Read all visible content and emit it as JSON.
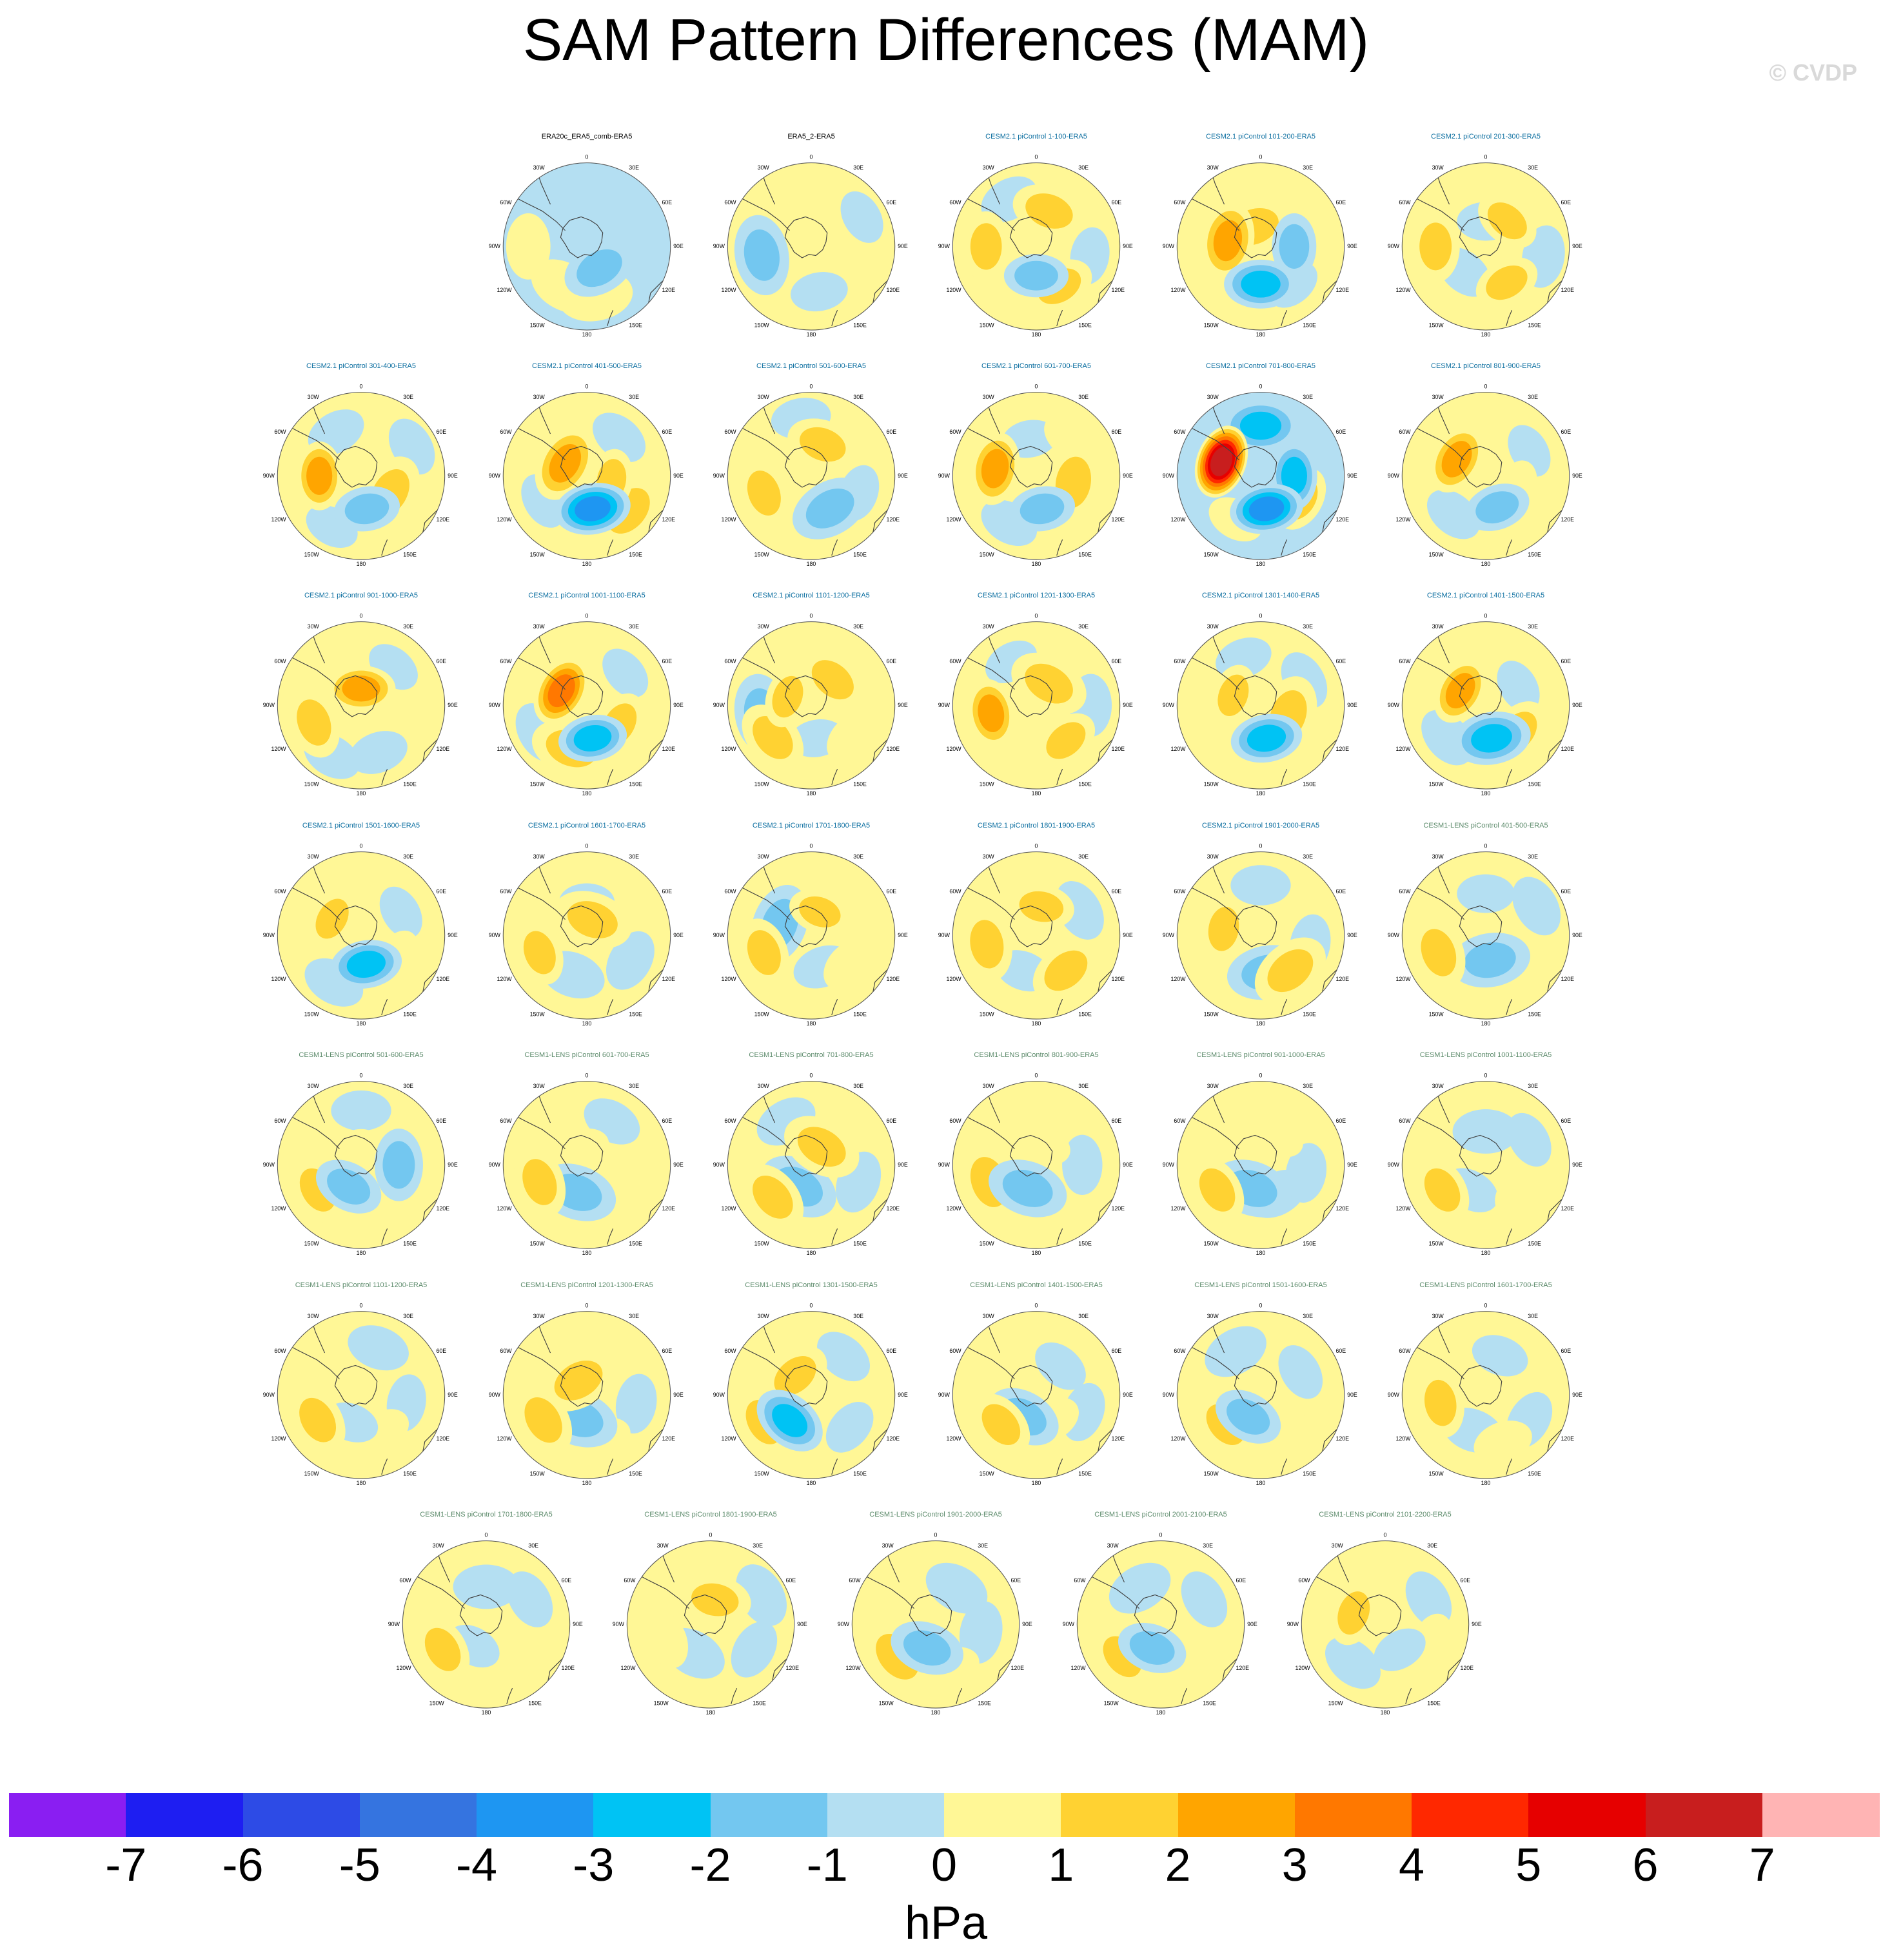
{
  "title": "SAM Pattern Differences (MAM)",
  "watermark": "© CVDP",
  "units": "hPa",
  "colorbar": {
    "colors": [
      "#8a1ef2",
      "#1e1ef2",
      "#2d4be6",
      "#3574e0",
      "#1e96f2",
      "#00c3f4",
      "#73c7f0",
      "#b4dff2",
      "#fff796",
      "#ffd232",
      "#ffa500",
      "#ff7800",
      "#ff2800",
      "#e60000",
      "#c81e1e",
      "#ffb4b4"
    ],
    "labels": [
      "-7",
      "-6",
      "-5",
      "-4",
      "-3",
      "-2",
      "-1",
      "0",
      "1",
      "2",
      "3",
      "4",
      "5",
      "6",
      "7"
    ]
  },
  "map_labels": {
    "top": "0",
    "bottom": "180",
    "ul": "30W",
    "ur": "30E",
    "l1": "60W",
    "r1": "60E",
    "l2": "90W",
    "r2": "90E",
    "l3": "120W",
    "r3": "120E",
    "bl": "150W",
    "br": "150E"
  },
  "panels": [
    {
      "label": "ERA20c_ERA5_comb-ERA5",
      "color": "#000000",
      "base": -0.5,
      "blobs": [
        [
          -90,
          70,
          0.6
        ],
        [
          -150,
          55,
          0.5
        ],
        [
          170,
          60,
          0.4
        ],
        [
          150,
          30,
          -1.4
        ]
      ]
    },
    {
      "label": "ERA5_2-ERA5",
      "color": "#000000",
      "base": 0.4,
      "blobs": [
        [
          -100,
          60,
          -1.2
        ],
        [
          60,
          70,
          -1.0
        ],
        [
          170,
          55,
          -0.9
        ],
        [
          -150,
          30,
          0.6
        ]
      ]
    },
    {
      "label": "CESM2.1 piControl 1-100-ERA5",
      "color": "#0b6ea0",
      "base": 0.5,
      "blobs": [
        [
          -90,
          60,
          1.6
        ],
        [
          150,
          55,
          1.6
        ],
        [
          180,
          35,
          -1.9
        ],
        [
          20,
          45,
          1.4
        ],
        [
          100,
          65,
          -0.9
        ],
        [
          -30,
          65,
          -0.8
        ]
      ]
    },
    {
      "label": "CESM2.1 piControl 101-200-ERA5",
      "color": "#0b6ea0",
      "base": 0.5,
      "blobs": [
        [
          -80,
          40,
          2.2
        ],
        [
          180,
          45,
          -2.5
        ],
        [
          90,
          40,
          -1.8
        ],
        [
          -20,
          25,
          1.2
        ],
        [
          140,
          60,
          -1.0
        ],
        [
          20,
          70,
          0.8
        ]
      ]
    },
    {
      "label": "CESM2.1 piControl 201-300-ERA5",
      "color": "#0b6ea0",
      "base": 0.5,
      "blobs": [
        [
          -90,
          60,
          1.5
        ],
        [
          150,
          50,
          1.8
        ],
        [
          40,
          40,
          1.8
        ],
        [
          0,
          30,
          -0.9
        ],
        [
          -140,
          40,
          -0.8
        ],
        [
          100,
          70,
          -0.7
        ]
      ]
    },
    {
      "label": "CESM2.1 piControl 301-400-ERA5",
      "color": "#0b6ea0",
      "base": 0.2,
      "blobs": [
        [
          -90,
          50,
          2.8
        ],
        [
          170,
          40,
          -1.8
        ],
        [
          120,
          40,
          1.3
        ],
        [
          -30,
          60,
          -0.8
        ],
        [
          60,
          70,
          -0.8
        ],
        [
          -150,
          70,
          -1.0
        ]
      ]
    },
    {
      "label": "CESM2.1 piControl 401-500-ERA5",
      "color": "#0b6ea0",
      "base": 0.4,
      "blobs": [
        [
          170,
          40,
          -3.3
        ],
        [
          -60,
          30,
          2.2
        ],
        [
          100,
          30,
          2.0
        ],
        [
          130,
          65,
          1.2
        ],
        [
          -120,
          60,
          -0.9
        ],
        [
          40,
          60,
          -0.8
        ]
      ]
    },
    {
      "label": "CESM2.1 piControl 501-600-ERA5",
      "color": "#0b6ea0",
      "base": 0.5,
      "blobs": [
        [
          -110,
          60,
          1.6
        ],
        [
          150,
          45,
          -1.2
        ],
        [
          20,
          40,
          1.5
        ],
        [
          -10,
          70,
          -0.8
        ],
        [
          110,
          60,
          -0.9
        ],
        [
          -160,
          45,
          1.0
        ]
      ]
    },
    {
      "label": "CESM2.1 piControl 601-700-ERA5",
      "color": "#0b6ea0",
      "base": 0.3,
      "blobs": [
        [
          -80,
          50,
          2.5
        ],
        [
          170,
          40,
          -1.8
        ],
        [
          100,
          45,
          1.2
        ],
        [
          -10,
          45,
          -1.0
        ],
        [
          40,
          60,
          1.0
        ],
        [
          -150,
          65,
          -0.8
        ]
      ]
    },
    {
      "label": "CESM2.1 piControl 701-800-ERA5",
      "color": "#0b6ea0",
      "base": -0.3,
      "blobs": [
        [
          -70,
          50,
          6.5
        ],
        [
          170,
          40,
          -3.5
        ],
        [
          90,
          40,
          -2.8
        ],
        [
          0,
          60,
          -2.2
        ],
        [
          120,
          55,
          1.8
        ],
        [
          -150,
          60,
          0.9
        ]
      ]
    },
    {
      "label": "CESM2.1 piControl 801-900-ERA5",
      "color": "#0b6ea0",
      "base": 0.2,
      "blobs": [
        [
          -60,
          40,
          2.6
        ],
        [
          160,
          40,
          -1.8
        ],
        [
          60,
          60,
          -1.0
        ],
        [
          -140,
          60,
          -0.8
        ],
        [
          110,
          40,
          1.0
        ]
      ]
    },
    {
      "label": "CESM2.1 piControl 901-1000-ERA5",
      "color": "#0b6ea0",
      "base": 0.4,
      "blobs": [
        [
          0,
          20,
          2.8
        ],
        [
          -110,
          60,
          1.5
        ],
        [
          40,
          60,
          -1.0
        ],
        [
          160,
          60,
          -0.8
        ],
        [
          -150,
          70,
          -0.8
        ]
      ]
    },
    {
      "label": "CESM2.1 piControl 1001-1100-ERA5",
      "color": "#0b6ea0",
      "base": 0.5,
      "blobs": [
        [
          -60,
          35,
          3.6
        ],
        [
          170,
          40,
          -2.8
        ],
        [
          120,
          45,
          1.8
        ],
        [
          50,
          60,
          -1.0
        ],
        [
          -120,
          65,
          -0.7
        ],
        [
          -160,
          55,
          1.2
        ]
      ]
    },
    {
      "label": "CESM2.1 piControl 1101-1200-ERA5",
      "color": "#0b6ea0",
      "base": 0.5,
      "blobs": [
        [
          -70,
          30,
          2.0
        ],
        [
          -100,
          60,
          -1.2
        ],
        [
          170,
          40,
          -1.0
        ],
        [
          40,
          40,
          1.5
        ],
        [
          -130,
          60,
          1.4
        ],
        [
          130,
          60,
          1.0
        ]
      ]
    },
    {
      "label": "CESM2.1 piControl 1201-1300-ERA5",
      "color": "#0b6ea0",
      "base": 0.4,
      "blobs": [
        [
          -100,
          55,
          2.8
        ],
        [
          140,
          55,
          1.8
        ],
        [
          30,
          30,
          1.2
        ],
        [
          -30,
          60,
          -1.0
        ],
        [
          90,
          65,
          -0.7
        ]
      ]
    },
    {
      "label": "CESM2.1 piControl 1301-1400-ERA5",
      "color": "#0b6ea0",
      "base": 0.3,
      "blobs": [
        [
          -70,
          35,
          2.0
        ],
        [
          170,
          40,
          -2.6
        ],
        [
          110,
          35,
          1.2
        ],
        [
          -20,
          60,
          -0.9
        ],
        [
          60,
          60,
          -0.8
        ]
      ]
    },
    {
      "label": "CESM2.1 piControl 1401-1500-ERA5",
      "color": "#0b6ea0",
      "base": 0.5,
      "blobs": [
        [
          -60,
          35,
          2.8
        ],
        [
          170,
          40,
          -2.2
        ],
        [
          130,
          50,
          1.6
        ],
        [
          60,
          45,
          -1.0
        ],
        [
          -130,
          60,
          -0.7
        ]
      ]
    },
    {
      "label": "CESM2.1 piControl 1501-1600-ERA5",
      "color": "#0b6ea0",
      "base": 0.4,
      "blobs": [
        [
          -60,
          40,
          2.0
        ],
        [
          170,
          35,
          -2.6
        ],
        [
          60,
          55,
          -1.0
        ],
        [
          120,
          50,
          1.0
        ],
        [
          -150,
          65,
          -0.7
        ]
      ]
    },
    {
      "label": "CESM2.1 piControl 1601-1700-ERA5",
      "color": "#0b6ea0",
      "base": 0.5,
      "blobs": [
        [
          -110,
          60,
          1.8
        ],
        [
          0,
          40,
          -1.0
        ],
        [
          20,
          20,
          1.2
        ],
        [
          120,
          60,
          -0.7
        ],
        [
          -160,
          50,
          -0.6
        ]
      ]
    },
    {
      "label": "CESM2.1 piControl 1701-1800-ERA5",
      "color": "#0b6ea0",
      "base": 0.5,
      "blobs": [
        [
          20,
          30,
          2.0
        ],
        [
          -70,
          40,
          -1.2
        ],
        [
          -110,
          60,
          1.6
        ],
        [
          130,
          55,
          1.0
        ],
        [
          160,
          40,
          -0.8
        ]
      ]
    },
    {
      "label": "CESM2.1 piControl 1801-1900-ERA5",
      "color": "#0b6ea0",
      "base": 0.5,
      "blobs": [
        [
          10,
          35,
          1.8
        ],
        [
          -100,
          60,
          1.4
        ],
        [
          140,
          55,
          1.4
        ],
        [
          -160,
          45,
          -0.9
        ],
        [
          60,
          60,
          -0.7
        ]
      ]
    },
    {
      "label": "CESM2.1 piControl 1901-2000-ERA5",
      "color": "#0b6ea0",
      "base": 0.5,
      "blobs": [
        [
          -80,
          45,
          1.8
        ],
        [
          170,
          45,
          -1.2
        ],
        [
          140,
          55,
          1.2
        ],
        [
          0,
          60,
          -0.8
        ],
        [
          100,
          60,
          -0.8
        ]
      ]
    },
    {
      "label": "CESM1-LENS piControl 401-500-ERA5",
      "color": "#5b8a6a",
      "base": 0.3,
      "blobs": [
        [
          -110,
          60,
          1.4
        ],
        [
          170,
          30,
          -1.2
        ],
        [
          130,
          55,
          1.0
        ],
        [
          0,
          50,
          -0.9
        ],
        [
          60,
          70,
          -0.7
        ]
      ]
    },
    {
      "label": "CESM1-LENS piControl 501-600-ERA5",
      "color": "#5b8a6a",
      "base": 0.5,
      "blobs": [
        [
          -120,
          60,
          1.6
        ],
        [
          -150,
          30,
          -1.6
        ],
        [
          90,
          45,
          -1.5
        ],
        [
          -30,
          20,
          1.0
        ],
        [
          0,
          65,
          -0.8
        ]
      ]
    },
    {
      "label": "CESM1-LENS piControl 601-700-ERA5",
      "color": "#5b8a6a",
      "base": 0.5,
      "blobs": [
        [
          -110,
          60,
          1.5
        ],
        [
          -160,
          35,
          -1.2
        ],
        [
          120,
          55,
          1.0
        ],
        [
          30,
          60,
          -0.8
        ],
        [
          -20,
          20,
          0.9
        ]
      ]
    },
    {
      "label": "CESM1-LENS piControl 701-800-ERA5",
      "color": "#5b8a6a",
      "base": 0.5,
      "blobs": [
        [
          -130,
          60,
          1.4
        ],
        [
          -150,
          30,
          -1.2
        ],
        [
          30,
          25,
          1.2
        ],
        [
          110,
          60,
          -0.7
        ],
        [
          -30,
          60,
          -0.7
        ]
      ]
    },
    {
      "label": "CESM1-LENS piControl 801-900-ERA5",
      "color": "#5b8a6a",
      "base": 0.4,
      "blobs": [
        [
          -110,
          60,
          1.2
        ],
        [
          -160,
          30,
          -1.2
        ],
        [
          20,
          25,
          1.0
        ],
        [
          90,
          55,
          -0.8
        ],
        [
          160,
          60,
          1.0
        ]
      ]
    },
    {
      "label": "CESM1-LENS piControl 901-1000-ERA5",
      "color": "#5b8a6a",
      "base": 0.3,
      "blobs": [
        [
          -120,
          60,
          1.6
        ],
        [
          -160,
          30,
          -1.2
        ],
        [
          30,
          40,
          1.0
        ],
        [
          100,
          55,
          -0.8
        ],
        [
          150,
          40,
          -0.7
        ]
      ]
    },
    {
      "label": "CESM1-LENS piControl 1001-1100-ERA5",
      "color": "#5b8a6a",
      "base": 0.4,
      "blobs": [
        [
          -120,
          60,
          1.6
        ],
        [
          -150,
          35,
          -0.9
        ],
        [
          60,
          60,
          -0.9
        ],
        [
          130,
          50,
          1.0
        ],
        [
          0,
          40,
          -0.6
        ]
      ]
    },
    {
      "label": "CESM1-LENS piControl 1101-1200-ERA5",
      "color": "#5b8a6a",
      "base": 0.4,
      "blobs": [
        [
          -120,
          60,
          1.5
        ],
        [
          -160,
          35,
          -1.0
        ],
        [
          100,
          55,
          -0.9
        ],
        [
          20,
          60,
          -0.7
        ],
        [
          150,
          50,
          0.9
        ]
      ]
    },
    {
      "label": "CESM1-LENS piControl 1201-1300-ERA5",
      "color": "#5b8a6a",
      "base": 0.5,
      "blobs": [
        [
          -120,
          60,
          1.4
        ],
        [
          -160,
          30,
          -1.2
        ],
        [
          -30,
          20,
          1.2
        ],
        [
          100,
          60,
          -0.8
        ],
        [
          160,
          55,
          0.9
        ]
      ]
    },
    {
      "label": "CESM1-LENS piControl 1301-1500-ERA5",
      "color": "#5b8a6a",
      "base": 0.4,
      "blobs": [
        [
          -140,
          40,
          -2.4
        ],
        [
          -40,
          30,
          1.5
        ],
        [
          -120,
          65,
          1.5
        ],
        [
          130,
          60,
          -0.9
        ],
        [
          40,
          60,
          -0.8
        ]
      ]
    },
    {
      "label": "CESM1-LENS piControl 1401-1500-ERA5",
      "color": "#5b8a6a",
      "base": 0.3,
      "blobs": [
        [
          -130,
          55,
          1.6
        ],
        [
          -150,
          30,
          -1.4
        ],
        [
          40,
          45,
          -0.9
        ],
        [
          110,
          60,
          -0.8
        ],
        [
          150,
          35,
          0.8
        ]
      ]
    },
    {
      "label": "CESM1-LENS piControl 1501-1600-ERA5",
      "color": "#5b8a6a",
      "base": 0.4,
      "blobs": [
        [
          -130,
          55,
          1.6
        ],
        [
          -150,
          30,
          -1.6
        ],
        [
          60,
          55,
          -0.9
        ],
        [
          150,
          55,
          0.9
        ],
        [
          -30,
          60,
          -0.6
        ]
      ]
    },
    {
      "label": "CESM1-LENS piControl 1601-1700-ERA5",
      "color": "#5b8a6a",
      "base": 0.4,
      "blobs": [
        [
          -100,
          55,
          1.6
        ],
        [
          20,
          50,
          -0.9
        ],
        [
          120,
          60,
          -0.8
        ],
        [
          -160,
          45,
          -0.7
        ],
        [
          160,
          60,
          0.8
        ]
      ]
    },
    {
      "label": "CESM1-LENS piControl 1701-1800-ERA5",
      "color": "#5b8a6a",
      "base": 0.3,
      "blobs": [
        [
          -120,
          60,
          1.6
        ],
        [
          -150,
          30,
          -1.0
        ],
        [
          60,
          60,
          -0.8
        ],
        [
          140,
          55,
          0.8
        ],
        [
          0,
          45,
          -0.6
        ]
      ]
    },
    {
      "label": "CESM1-LENS piControl 1801-1900-ERA5",
      "color": "#5b8a6a",
      "base": 0.5,
      "blobs": [
        [
          10,
          30,
          1.5
        ],
        [
          -110,
          55,
          0.9
        ],
        [
          120,
          60,
          -0.8
        ],
        [
          -150,
          40,
          -0.6
        ],
        [
          60,
          70,
          -0.6
        ]
      ]
    },
    {
      "label": "CESM1-LENS piControl 1901-2000-ERA5",
      "color": "#5b8a6a",
      "base": 0.4,
      "blobs": [
        [
          -130,
          60,
          1.2
        ],
        [
          -160,
          30,
          -1.4
        ],
        [
          100,
          55,
          -0.7
        ],
        [
          30,
          50,
          -0.6
        ],
        [
          160,
          55,
          0.9
        ]
      ]
    },
    {
      "label": "CESM1-LENS piControl 2001-2100-ERA5",
      "color": "#5b8a6a",
      "base": 0.3,
      "blobs": [
        [
          -130,
          60,
          1.6
        ],
        [
          -160,
          30,
          -1.6
        ],
        [
          60,
          60,
          -0.8
        ],
        [
          150,
          55,
          0.8
        ],
        [
          -30,
          50,
          -0.6
        ]
      ]
    },
    {
      "label": "CESM1-LENS piControl 2101-2200-ERA5",
      "color": "#5b8a6a",
      "base": 0.3,
      "blobs": [
        [
          -70,
          40,
          1.8
        ],
        [
          150,
          35,
          -1.0
        ],
        [
          60,
          60,
          -0.8
        ],
        [
          -140,
          60,
          -0.7
        ],
        [
          110,
          60,
          0.9
        ]
      ]
    }
  ]
}
